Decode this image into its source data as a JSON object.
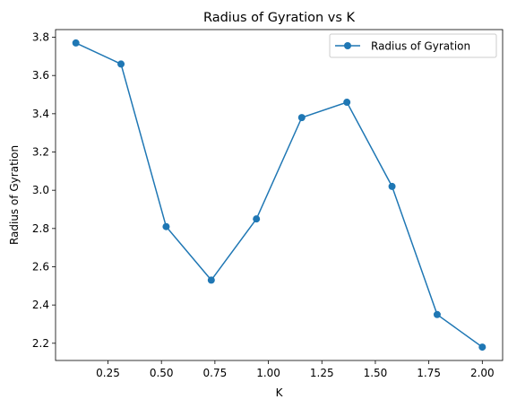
{
  "chart_data": {
    "type": "line",
    "title": "Radius of Gyration vs K",
    "xlabel": "K",
    "ylabel": "Radius of Gyration",
    "xlim": [
      0.005,
      2.095
    ],
    "ylim": [
      2.11,
      3.84
    ],
    "xticks": [
      "0.25",
      "0.50",
      "0.75",
      "1.00",
      "1.25",
      "1.50",
      "1.75",
      "2.00"
    ],
    "yticks": [
      "2.2",
      "2.4",
      "2.6",
      "2.8",
      "3.0",
      "3.2",
      "3.4",
      "3.6",
      "3.8"
    ],
    "grid": false,
    "legend_position": "top-right",
    "series": [
      {
        "name": "Radius of Gyration",
        "color": "#1f77b4",
        "marker": "circle",
        "x": [
          0.1,
          0.311,
          0.522,
          0.733,
          0.944,
          1.156,
          1.367,
          1.578,
          1.789,
          2.0
        ],
        "y": [
          3.77,
          3.66,
          2.81,
          2.53,
          2.85,
          3.38,
          3.46,
          3.02,
          2.35,
          2.18
        ]
      }
    ]
  }
}
